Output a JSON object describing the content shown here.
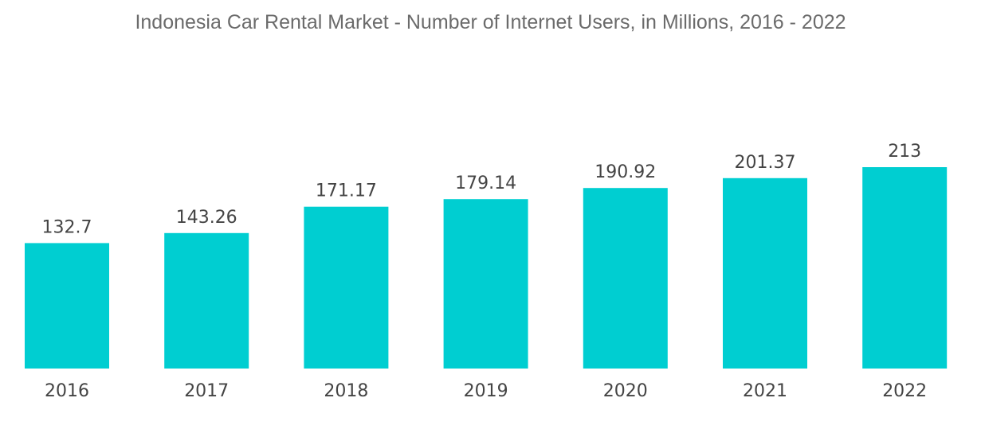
{
  "chart_data": {
    "type": "bar",
    "title": "Indonesia Car Rental Market - Number of Internet Users, in Millions, 2016 - 2022",
    "categories": [
      "2016",
      "2017",
      "2018",
      "2019",
      "2020",
      "2021",
      "2022"
    ],
    "values": [
      132.7,
      143.26,
      171.17,
      179.14,
      190.92,
      201.37,
      213
    ],
    "value_labels": [
      "132.7",
      "143.26",
      "171.17",
      "179.14",
      "190.92",
      "201.37",
      "213"
    ],
    "xlabel": "",
    "ylabel": "",
    "ylim": [
      0,
      225
    ],
    "grid": false,
    "legend": "none",
    "bar_color": "#00ced1"
  }
}
